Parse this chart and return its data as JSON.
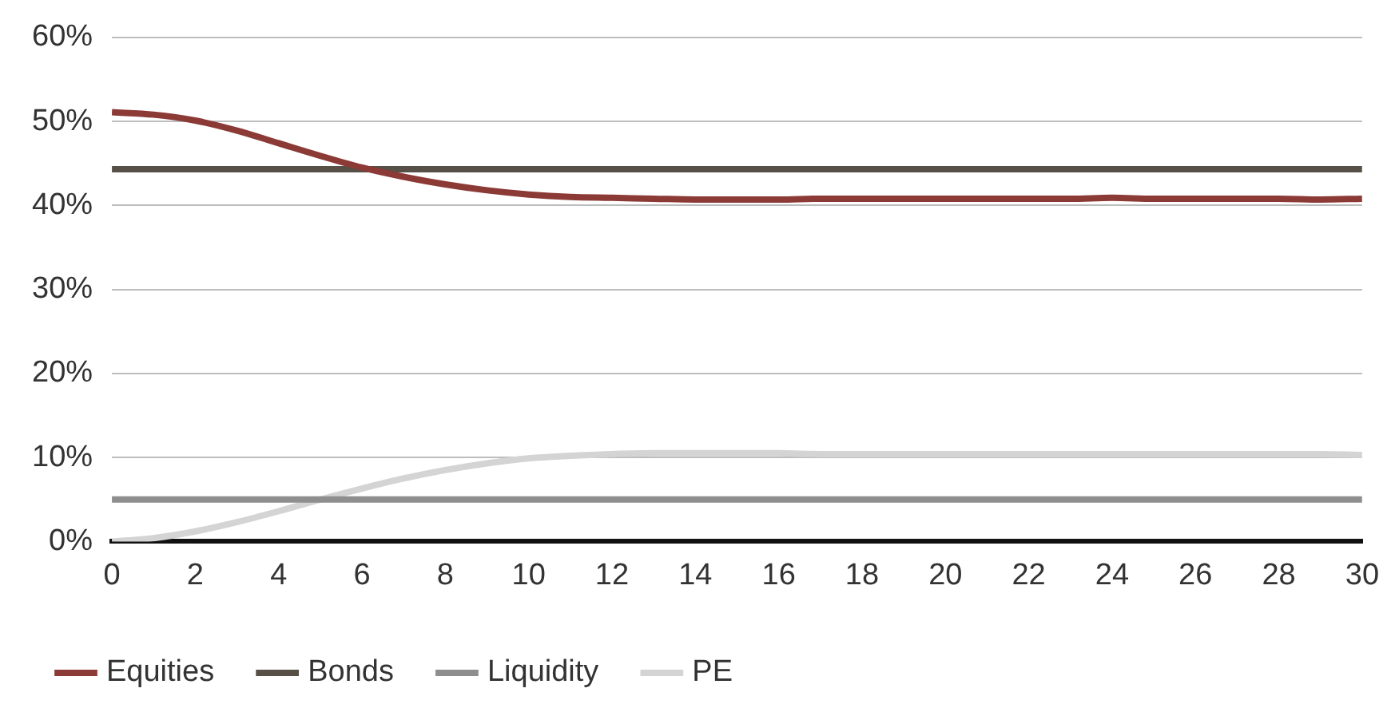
{
  "chart_data": {
    "type": "line",
    "x": [
      0,
      1,
      2,
      3,
      4,
      5,
      6,
      7,
      8,
      9,
      10,
      11,
      12,
      13,
      14,
      15,
      16,
      17,
      18,
      19,
      20,
      21,
      22,
      23,
      24,
      25,
      26,
      27,
      28,
      29,
      30
    ],
    "series": [
      {
        "name": "Equities",
        "color": "#8b3a36",
        "values": [
          51.1,
          50.8,
          50.1,
          48.9,
          47.4,
          45.9,
          44.5,
          43.4,
          42.5,
          41.8,
          41.3,
          41.0,
          40.9,
          40.8,
          40.7,
          40.7,
          40.7,
          40.8,
          40.8,
          40.8,
          40.8,
          40.8,
          40.8,
          40.8,
          40.9,
          40.8,
          40.8,
          40.8,
          40.8,
          40.7,
          40.8
        ]
      },
      {
        "name": "Bonds",
        "color": "#575047",
        "values": [
          44.3,
          44.3,
          44.3,
          44.3,
          44.3,
          44.3,
          44.3,
          44.3,
          44.3,
          44.3,
          44.3,
          44.3,
          44.3,
          44.3,
          44.3,
          44.3,
          44.3,
          44.3,
          44.3,
          44.3,
          44.3,
          44.3,
          44.3,
          44.3,
          44.3,
          44.3,
          44.3,
          44.3,
          44.3,
          44.3,
          44.3
        ]
      },
      {
        "name": "Liquidity",
        "color": "#8e8e8e",
        "values": [
          5,
          5,
          5,
          5,
          5,
          5,
          5,
          5,
          5,
          5,
          5,
          5,
          5,
          5,
          5,
          5,
          5,
          5,
          5,
          5,
          5,
          5,
          5,
          5,
          5,
          5,
          5,
          5,
          5,
          5,
          5
        ]
      },
      {
        "name": "PE",
        "color": "#d4d4d4",
        "values": [
          0,
          0.4,
          1.2,
          2.3,
          3.6,
          5.0,
          6.3,
          7.5,
          8.5,
          9.3,
          9.9,
          10.2,
          10.4,
          10.5,
          10.5,
          10.5,
          10.5,
          10.4,
          10.4,
          10.4,
          10.4,
          10.4,
          10.4,
          10.4,
          10.4,
          10.4,
          10.4,
          10.4,
          10.4,
          10.4,
          10.3
        ]
      }
    ],
    "xlim": [
      0,
      30
    ],
    "xticks": [
      0,
      2,
      4,
      6,
      8,
      10,
      12,
      14,
      16,
      18,
      20,
      22,
      24,
      26,
      28,
      30
    ],
    "ylim": [
      0,
      60
    ],
    "yticks": [
      {
        "value": 0,
        "label": "0%"
      },
      {
        "value": 10,
        "label": "10%"
      },
      {
        "value": 20,
        "label": "20%"
      },
      {
        "value": 30,
        "label": "30%"
      },
      {
        "value": 40,
        "label": "40%"
      },
      {
        "value": 50,
        "label": "50%"
      },
      {
        "value": 60,
        "label": "60%"
      }
    ],
    "grid": "y",
    "legend": "bottom",
    "marker": "none",
    "line_style": "solid"
  }
}
